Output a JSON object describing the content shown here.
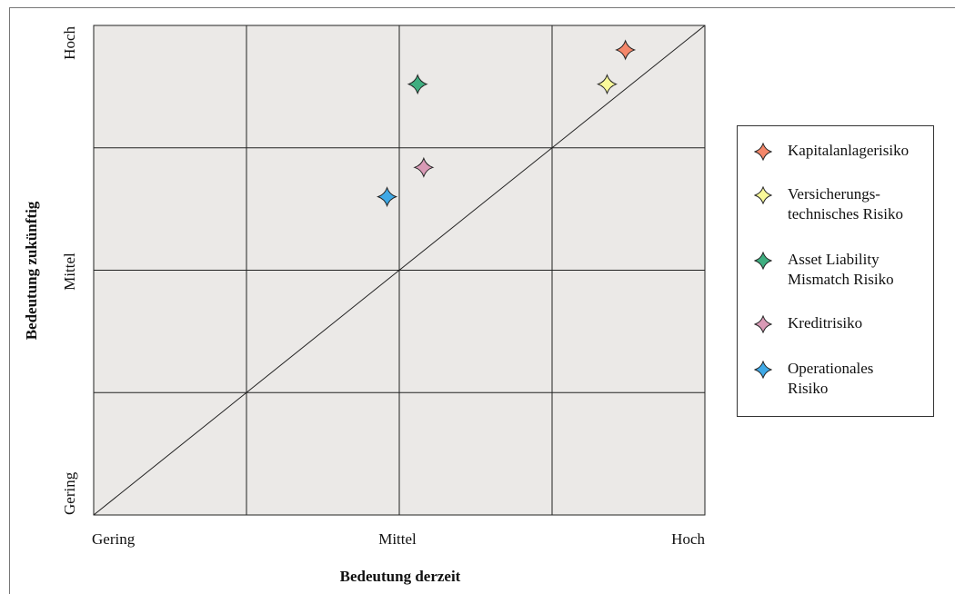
{
  "chart_data": {
    "type": "scatter",
    "xlabel": "Bedeutung derzeit",
    "ylabel": "Bedeutung zukünftig",
    "xlim": [
      0,
      1
    ],
    "ylim": [
      0,
      1
    ],
    "x_ticks": [
      "Gering",
      "Mittel",
      "Hoch"
    ],
    "y_ticks": [
      "Gering",
      "Mittel",
      "Hoch"
    ],
    "grid": true,
    "diagonal": true,
    "legend_position": "right",
    "series": [
      {
        "name_lines": [
          "Kapitalanlagerisiko"
        ],
        "x": 0.87,
        "y": 0.95,
        "color": "#f4876a"
      },
      {
        "name_lines": [
          "Versicherungs-",
          "technisches Risiko"
        ],
        "x": 0.84,
        "y": 0.88,
        "color": "#fafa9a"
      },
      {
        "name_lines": [
          "Asset Liability",
          "Mismatch Risiko"
        ],
        "x": 0.53,
        "y": 0.88,
        "color": "#3fae80"
      },
      {
        "name_lines": [
          "Kreditrisiko"
        ],
        "x": 0.54,
        "y": 0.71,
        "color": "#d99ab6"
      },
      {
        "name_lines": [
          "Operationales",
          "Risiko"
        ],
        "x": 0.48,
        "y": 0.65,
        "color": "#3fa9e6"
      }
    ]
  }
}
